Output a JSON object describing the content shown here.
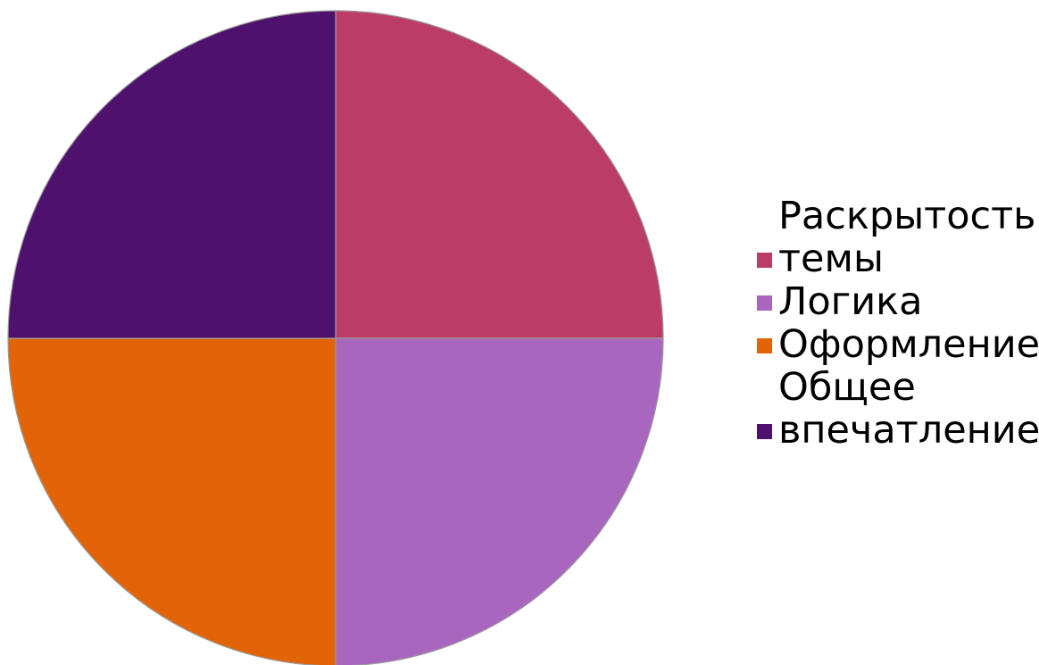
{
  "chart_data": {
    "type": "pie",
    "title": "",
    "categories": [
      "Раскрытость темы",
      "Логика",
      "Оформление",
      "Общее впечатление"
    ],
    "values": [
      25,
      25,
      25,
      25
    ],
    "colors": [
      "#bb3c67",
      "#a966bf",
      "#e26407",
      "#4e116d"
    ],
    "legend_position": "right"
  },
  "legend": {
    "items": [
      {
        "label": "Раскрытость темы",
        "color": "#bb3c67"
      },
      {
        "label": "Логика",
        "color": "#a966bf"
      },
      {
        "label": "Оформление",
        "color": "#e26407"
      },
      {
        "label": "Общее впечатление",
        "color": "#4e116d"
      }
    ]
  }
}
